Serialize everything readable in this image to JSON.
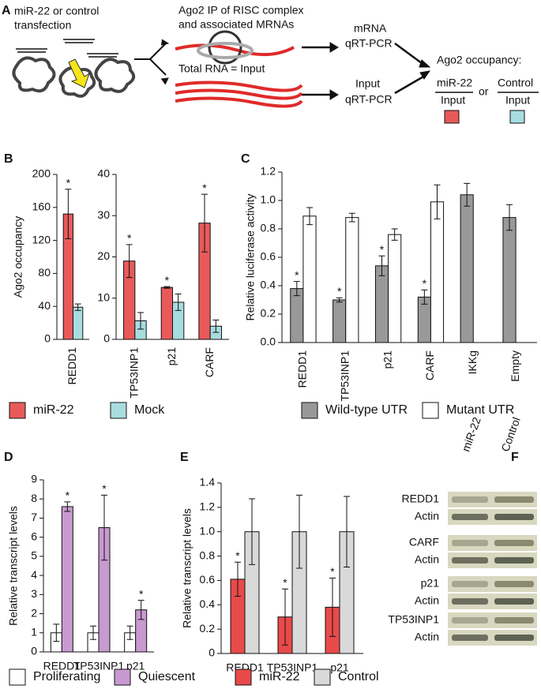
{
  "diagram": {
    "label": "A",
    "transfection_1": "miR-22 or control",
    "transfection_2": "transfection",
    "ip_1": "Ago2 IP of RISC complex",
    "ip_2": "and associated MRNAs",
    "total": "Total RNA = Input",
    "mrna_1": "mRNA",
    "mrna_2": "qRT-PCR",
    "input_1": "Input",
    "input_2": "qRT-PCR",
    "occupancy": "Ago2 occupancy:",
    "num_1": "miR-22",
    "den_1": "Input",
    "or": "or",
    "num_2": "Control",
    "den_2": "Input"
  },
  "chart_data": [
    {
      "type": "bar",
      "label": "B",
      "ylabel": "Ago2 occupancy",
      "categories": [
        "REDD1"
      ],
      "series": [
        {
          "color": "#e85a5a",
          "values": [
            152
          ],
          "errors": [
            30
          ],
          "annotations": [
            "*"
          ]
        },
        {
          "color": "#a8dde0",
          "values": [
            39
          ],
          "errors": [
            4
          ],
          "annotations": [
            null
          ]
        }
      ],
      "ylim": [
        0,
        200
      ],
      "yticks": [
        0,
        40,
        80,
        120,
        160,
        200
      ]
    },
    {
      "type": "bar",
      "categories": [
        "TP53INP1",
        "p21",
        "CARF"
      ],
      "series": [
        {
          "name": "miR-22",
          "color": "#e85a5a",
          "values": [
            19,
            12.6,
            28.2
          ],
          "errors": [
            4,
            0.2,
            7
          ],
          "annotations": [
            "*",
            "*",
            "*"
          ]
        },
        {
          "name": "Mock",
          "color": "#a8dde0",
          "values": [
            4.5,
            9,
            3.2
          ],
          "errors": [
            2,
            2,
            1.5
          ],
          "annotations": [
            null,
            null,
            null
          ]
        }
      ],
      "ylim": [
        0,
        40
      ],
      "yticks": [
        0,
        10,
        20,
        30,
        40
      ]
    },
    {
      "type": "bar",
      "label": "C",
      "ylabel": "Relative luciferase activity",
      "categories": [
        "REDD1",
        "TP53INP1",
        "p21",
        "CARF",
        "IKKg",
        "Empty"
      ],
      "series": [
        {
          "name": "Wild-type UTR",
          "color": "#999999",
          "values": [
            0.38,
            0.3,
            0.54,
            0.32,
            1.04,
            0.88
          ],
          "errors": [
            0.05,
            0.015,
            0.07,
            0.05,
            0.08,
            0.09
          ],
          "annotations": [
            "*",
            "*",
            "*",
            "*",
            null,
            null
          ]
        },
        {
          "name": "Mutant UTR",
          "color": "#ffffff",
          "values": [
            0.89,
            0.88,
            0.76,
            0.99,
            null,
            null
          ],
          "errors": [
            0.06,
            0.03,
            0.04,
            0.12,
            null,
            null
          ],
          "annotations": [
            null,
            null,
            null,
            null,
            null,
            null
          ]
        }
      ],
      "ylim": [
        0,
        1.2
      ],
      "yticks": [
        {
          "value": 0,
          "label": "0.0"
        },
        0.2,
        0.4,
        0.6,
        0.8,
        {
          "value": 1,
          "label": "1.0"
        },
        1.2
      ]
    },
    {
      "type": "bar",
      "label": "D",
      "ylabel": "Relative transcript levels",
      "categories": [
        "REDD1",
        "TP53INP1",
        "p21"
      ],
      "series": [
        {
          "name": "Proliferating",
          "color": "#ffffff",
          "values": [
            1,
            1,
            1
          ],
          "errors": [
            0.45,
            0.35,
            0.35
          ],
          "annotations": [
            null,
            null,
            null
          ]
        },
        {
          "name": "Quiescent",
          "color": "#c89ad0",
          "values": [
            7.6,
            6.5,
            2.2
          ],
          "errors": [
            0.25,
            1.7,
            0.5
          ],
          "annotations": [
            "*",
            "*",
            "*"
          ]
        }
      ],
      "ylim": [
        0,
        9
      ],
      "yticks": [
        0,
        1,
        2,
        3,
        4,
        5,
        6,
        7,
        8,
        9
      ]
    },
    {
      "type": "bar",
      "label": "E",
      "ylabel": "Relative transcript levels",
      "categories": [
        "REDD1",
        "TP53INP1",
        "p21"
      ],
      "series": [
        {
          "name": "miR-22",
          "color": "#e84a4a",
          "values": [
            0.61,
            0.3,
            0.38
          ],
          "errors": [
            0.14,
            0.23,
            0.24
          ],
          "annotations": [
            "*",
            "*",
            "*"
          ]
        },
        {
          "name": "Control",
          "color": "#d9d9d9",
          "values": [
            1,
            1,
            1
          ],
          "errors": [
            0.27,
            0.3,
            0.29
          ],
          "annotations": [
            null,
            null,
            null
          ]
        }
      ],
      "ylim": [
        0,
        1.4
      ],
      "yticks": [
        0,
        0.2,
        0.4,
        0.6,
        0.8,
        {
          "value": 1,
          "label": "1.0"
        },
        1.2,
        1.4
      ]
    }
  ],
  "blot": {
    "label": "F",
    "columns": [
      "miR-22",
      "Control"
    ],
    "rows": [
      [
        "REDD1",
        "Actin"
      ],
      [
        "CARF",
        "Actin"
      ],
      [
        "p21",
        "Actin"
      ],
      [
        "TP53INP1",
        "Actin"
      ]
    ]
  }
}
